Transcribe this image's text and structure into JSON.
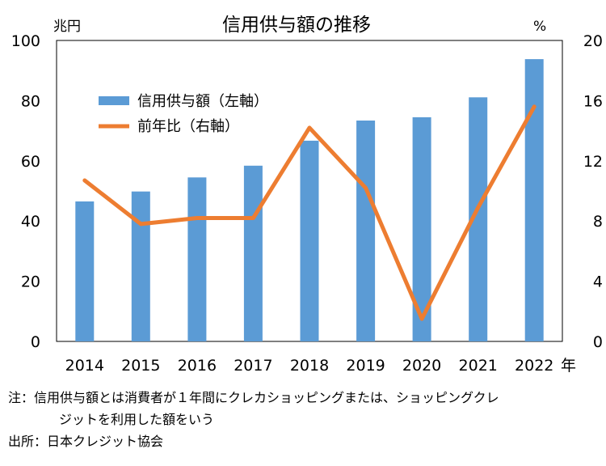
{
  "chart_data": {
    "type": "bar+line",
    "title": "信用供与額の推移",
    "x_unit": "年",
    "categories": [
      "2014",
      "2015",
      "2016",
      "2017",
      "2018",
      "2019",
      "2020",
      "2021",
      "2022"
    ],
    "left_axis": {
      "unit": "兆円",
      "ylim": [
        0,
        100
      ],
      "ticks": [
        "0",
        "20",
        "40",
        "60",
        "80",
        "100"
      ]
    },
    "right_axis": {
      "unit": "%",
      "ylim": [
        0,
        20
      ],
      "ticks": [
        "0",
        "4",
        "8",
        "12",
        "16",
        "20"
      ]
    },
    "series": [
      {
        "name": "信用供与額（左軸）",
        "type": "bar",
        "axis": "left",
        "color": "#5b9bd5",
        "values": [
          46.5,
          49.8,
          54.5,
          58.4,
          66.7,
          73.4,
          74.5,
          81.1,
          93.8
        ]
      },
      {
        "name": "前年比（右軸）",
        "type": "line",
        "axis": "right",
        "color": "#ed7d31",
        "values": [
          10.7,
          7.8,
          8.2,
          8.2,
          14.2,
          10.2,
          1.5,
          8.9,
          15.6
        ]
      }
    ],
    "legend_position": "top-left",
    "grid": false
  },
  "notes": {
    "note_line1": "注：信用供与額とは消費者が１年間にクレカショッピングまたは、ショッピングクレ",
    "note_line2": "ジットを利用した額をいう",
    "source": "出所：日本クレジット協会"
  }
}
